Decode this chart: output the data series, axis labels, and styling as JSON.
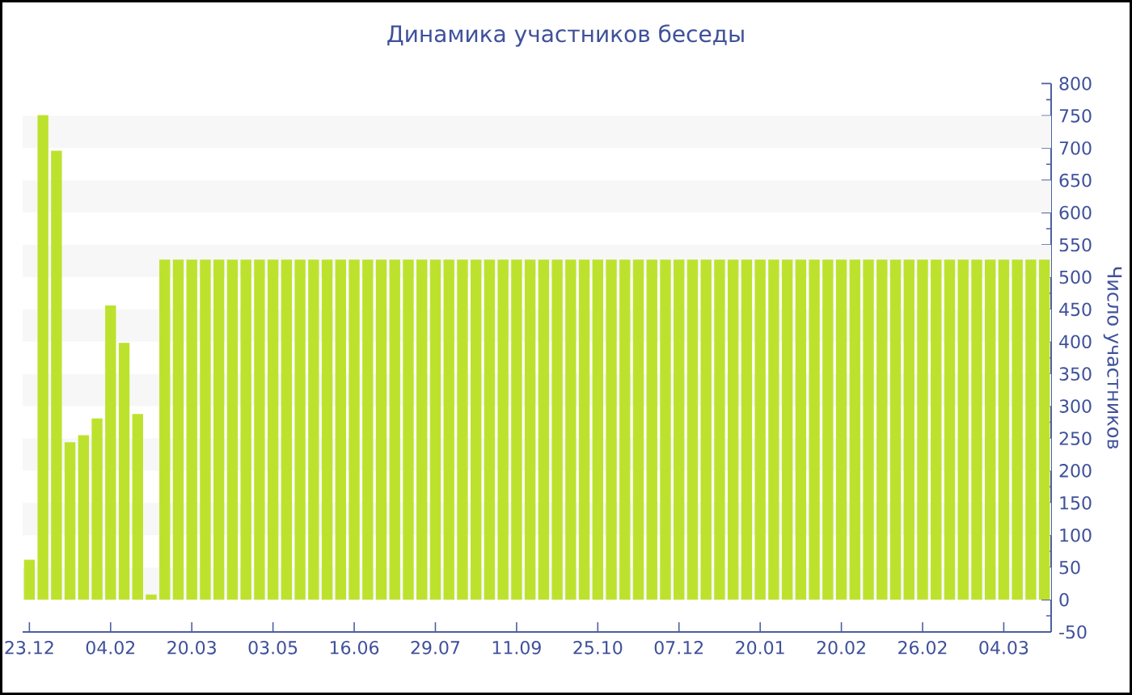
{
  "chart_data": {
    "type": "bar",
    "title": "Динамика участников беседы",
    "ylabel": "Число участников",
    "categories": [
      "23.12",
      null,
      null,
      null,
      null,
      null,
      "04.02",
      null,
      null,
      null,
      null,
      null,
      "20.03",
      null,
      null,
      null,
      null,
      null,
      "03.05",
      null,
      null,
      null,
      null,
      null,
      "16.06",
      null,
      null,
      null,
      null,
      null,
      "29.07",
      null,
      null,
      null,
      null,
      null,
      "11.09",
      null,
      null,
      null,
      null,
      null,
      "25.10",
      null,
      null,
      null,
      null,
      null,
      "07.12",
      null,
      null,
      null,
      null,
      null,
      "20.01",
      null,
      null,
      null,
      null,
      null,
      "20.02",
      null,
      null,
      null,
      null,
      null,
      "26.02",
      null,
      null,
      null,
      null,
      null,
      "04.03",
      null,
      null,
      null
    ],
    "values": [
      62,
      751,
      696,
      244,
      255,
      281,
      456,
      398,
      288,
      8,
      527,
      527,
      527,
      527,
      527,
      527,
      527,
      527,
      527,
      527,
      527,
      527,
      527,
      527,
      527,
      527,
      527,
      527,
      527,
      527,
      527,
      527,
      527,
      527,
      527,
      527,
      527,
      527,
      527,
      527,
      527,
      527,
      527,
      527,
      527,
      527,
      527,
      527,
      527,
      527,
      527,
      527,
      527,
      527,
      527,
      527,
      527,
      527,
      527,
      527,
      527,
      527,
      527,
      527,
      527,
      527,
      527,
      527,
      527,
      527,
      527,
      527,
      527,
      527,
      527,
      527
    ],
    "color": "#bde22e",
    "ylim": [
      -50,
      800
    ],
    "yticks": [
      -50,
      0,
      50,
      100,
      150,
      200,
      250,
      300,
      350,
      400,
      450,
      500,
      550,
      600,
      650,
      700,
      750,
      800
    ],
    "bands": [
      {
        "axis": "y",
        "from": 0,
        "to": 50,
        "color": "#f7f7f7"
      },
      {
        "axis": "y",
        "from": 100,
        "to": 150,
        "color": "#f7f7f7"
      },
      {
        "axis": "y",
        "from": 200,
        "to": 250,
        "color": "#f7f7f7"
      },
      {
        "axis": "y",
        "from": 300,
        "to": 350,
        "color": "#f7f7f7"
      },
      {
        "axis": "y",
        "from": 400,
        "to": 450,
        "color": "#f7f7f7"
      },
      {
        "axis": "y",
        "from": 500,
        "to": 550,
        "color": "#f7f7f7"
      },
      {
        "axis": "y",
        "from": 600,
        "to": 650,
        "color": "#f7f7f7"
      },
      {
        "axis": "y",
        "from": 700,
        "to": 750,
        "color": "#f7f7f7"
      }
    ]
  }
}
